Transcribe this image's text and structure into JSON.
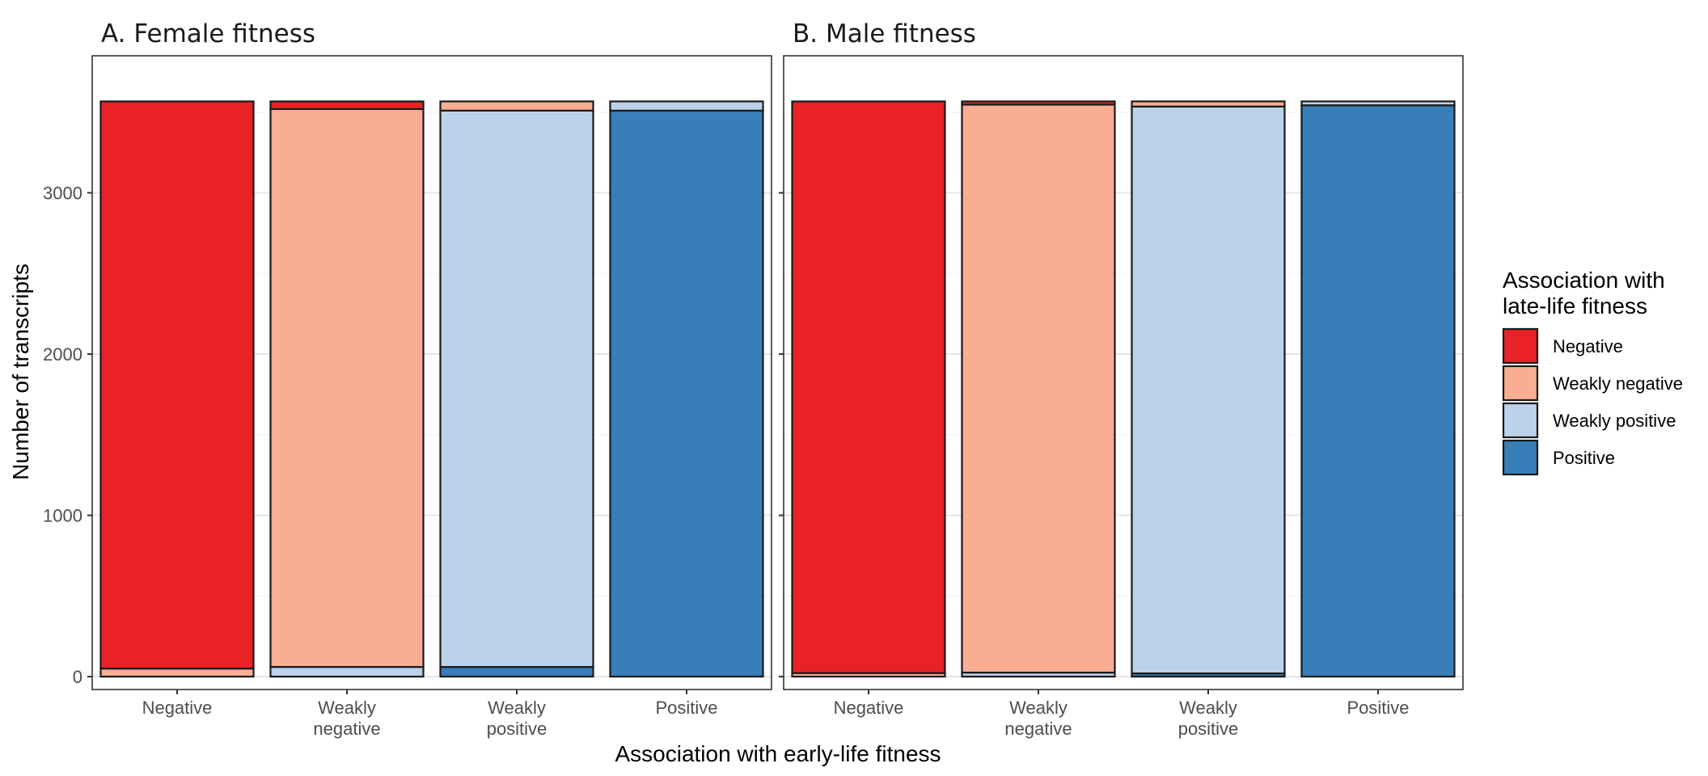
{
  "chart_data": {
    "type": "bar",
    "stacked": true,
    "panels": [
      {
        "title": "A. Female fitness",
        "categories": [
          [
            "Negative"
          ],
          [
            "Weakly",
            "negative"
          ],
          [
            "Weakly",
            "positive"
          ],
          [
            "Positive"
          ]
        ],
        "series": [
          {
            "name": "Positive",
            "values": [
              0,
              0,
              60,
              3510
            ]
          },
          {
            "name": "Weakly positive",
            "values": [
              0,
              60,
              3450,
              57
            ]
          },
          {
            "name": "Weakly negative",
            "values": [
              50,
              3460,
              57,
              0
            ]
          },
          {
            "name": "Negative",
            "values": [
              3517,
              47,
              0,
              0
            ]
          }
        ]
      },
      {
        "title": "B. Male fitness",
        "categories": [
          [
            "Negative"
          ],
          [
            "Weakly",
            "negative"
          ],
          [
            "Weakly",
            "positive"
          ],
          [
            "Positive"
          ]
        ],
        "series": [
          {
            "name": "Positive",
            "values": [
              0,
              0,
              20,
              3543
            ]
          },
          {
            "name": "Weakly positive",
            "values": [
              0,
              25,
              3515,
              24
            ]
          },
          {
            "name": "Weakly negative",
            "values": [
              22,
              3522,
              32,
              0
            ]
          },
          {
            "name": "Negative",
            "values": [
              3545,
              20,
              0,
              0
            ]
          }
        ]
      }
    ],
    "xlabel": "Association with early-life fitness",
    "ylabel": "Number of transcripts",
    "ylim": [
      -80,
      3850
    ],
    "yticks": [
      0,
      1000,
      2000,
      3000
    ],
    "legend": {
      "title_lines": [
        "Association with",
        "late-life fitness"
      ],
      "entries": [
        {
          "name": "Negative",
          "color": "#e82226"
        },
        {
          "name": "Weakly negative",
          "color": "#f9ad93"
        },
        {
          "name": "Weakly positive",
          "color": "#bcd2eb"
        },
        {
          "name": "Positive",
          "color": "#387eb9"
        }
      ],
      "position": "right"
    },
    "grid": true,
    "colors": {
      "Negative": "#e82226",
      "Weakly negative": "#f9ad93",
      "Weakly positive": "#bcd2eb",
      "Positive": "#387eb9"
    }
  }
}
